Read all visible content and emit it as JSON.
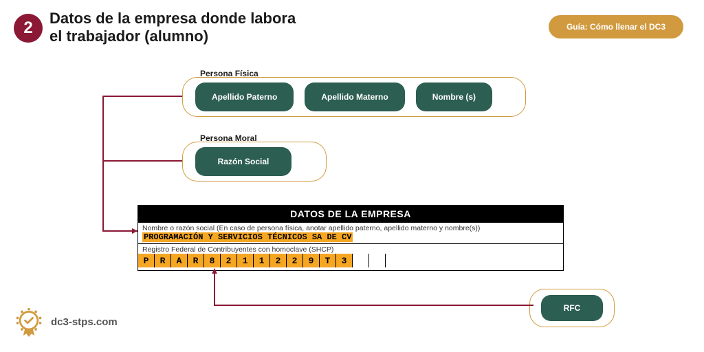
{
  "step": {
    "number": "2",
    "badge_color": "#8b1835"
  },
  "title": "Datos de la empresa donde labora el trabajador (alumno)",
  "guide_button": {
    "label": "Guía: Cómo llenar el DC3",
    "bg": "#d19a3f"
  },
  "persona_fisica": {
    "label": "Persona Física",
    "pills": [
      "Apellido Paterno",
      "Apellido Materno",
      "Nombre (s)"
    ],
    "pill_bg": "#2c5e51",
    "border": "#d19a3f"
  },
  "persona_moral": {
    "label": "Persona Moral",
    "pill": "Razón Social",
    "pill_bg": "#2c5e51",
    "border": "#d19a3f"
  },
  "rfc_callout": {
    "label": "RFC",
    "pill_bg": "#2c5e51",
    "border": "#d19a3f"
  },
  "form": {
    "header": "DATOS DE LA EMPRESA",
    "row1_label": "Nombre o razón social (En caso de persona física, anotar apellido paterno, apellido materno y nombre(s))",
    "row1_value": "PROGRAMACIÓN Y SERVICIOS TÉCNICOS SA DE CV",
    "row2_label": "Registro Federal de Contribuyentes con homoclave (SHCP)",
    "rfc_chars": [
      "P",
      "R",
      "A",
      "R",
      "8",
      "2",
      "1",
      "1",
      "2",
      "2",
      "9",
      "T",
      "3"
    ],
    "rfc_empty_count": 2,
    "highlight_color": "#f5a623",
    "header_bg": "#000000"
  },
  "connector_color": "#8b1835",
  "branding": {
    "site": "dc3-stps.com",
    "badge_color": "#d19a3f"
  }
}
